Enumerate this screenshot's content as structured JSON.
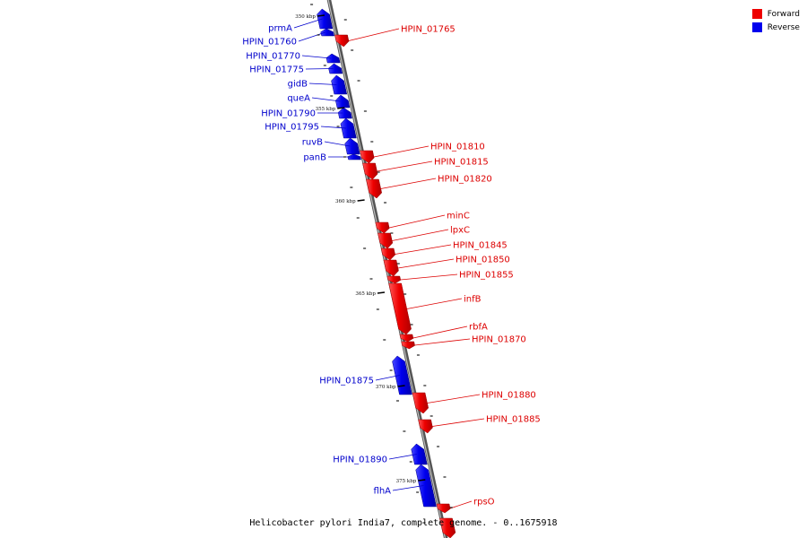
{
  "caption": "Helicobacter pylori India7, complete genome. - 0..1675918",
  "legend": {
    "forward_label": "Forward",
    "reverse_label": "Reverse",
    "forward_color": "#ee0000",
    "reverse_color": "#0000ee"
  },
  "ticks": [
    "350 kbp",
    "355 kbp",
    "360 kbp",
    "365 kbp",
    "370 kbp",
    "375 kbp"
  ],
  "genes": [
    {
      "label": "prmA",
      "strand": "reverse"
    },
    {
      "label": "HPIN_01760",
      "strand": "reverse"
    },
    {
      "label": "HPIN_01765",
      "strand": "forward"
    },
    {
      "label": "HPIN_01770",
      "strand": "reverse"
    },
    {
      "label": "HPIN_01775",
      "strand": "reverse"
    },
    {
      "label": "gidB",
      "strand": "reverse"
    },
    {
      "label": "queA",
      "strand": "reverse"
    },
    {
      "label": "HPIN_01790",
      "strand": "reverse"
    },
    {
      "label": "HPIN_01795",
      "strand": "reverse"
    },
    {
      "label": "ruvB",
      "strand": "reverse"
    },
    {
      "label": "panB",
      "strand": "reverse"
    },
    {
      "label": "HPIN_01810",
      "strand": "forward"
    },
    {
      "label": "HPIN_01815",
      "strand": "forward"
    },
    {
      "label": "HPIN_01820",
      "strand": "forward"
    },
    {
      "label": "minC",
      "strand": "forward"
    },
    {
      "label": "lpxC",
      "strand": "forward"
    },
    {
      "label": "HPIN_01845",
      "strand": "forward"
    },
    {
      "label": "HPIN_01850",
      "strand": "forward"
    },
    {
      "label": "HPIN_01855",
      "strand": "forward"
    },
    {
      "label": "infB",
      "strand": "forward"
    },
    {
      "label": "rbfA",
      "strand": "forward"
    },
    {
      "label": "HPIN_01870",
      "strand": "forward"
    },
    {
      "label": "HPIN_01875",
      "strand": "reverse"
    },
    {
      "label": "HPIN_01880",
      "strand": "forward"
    },
    {
      "label": "HPIN_01885",
      "strand": "forward"
    },
    {
      "label": "HPIN_01890",
      "strand": "reverse"
    },
    {
      "label": "flhA",
      "strand": "reverse"
    },
    {
      "label": "rpsO",
      "strand": "forward"
    }
  ]
}
